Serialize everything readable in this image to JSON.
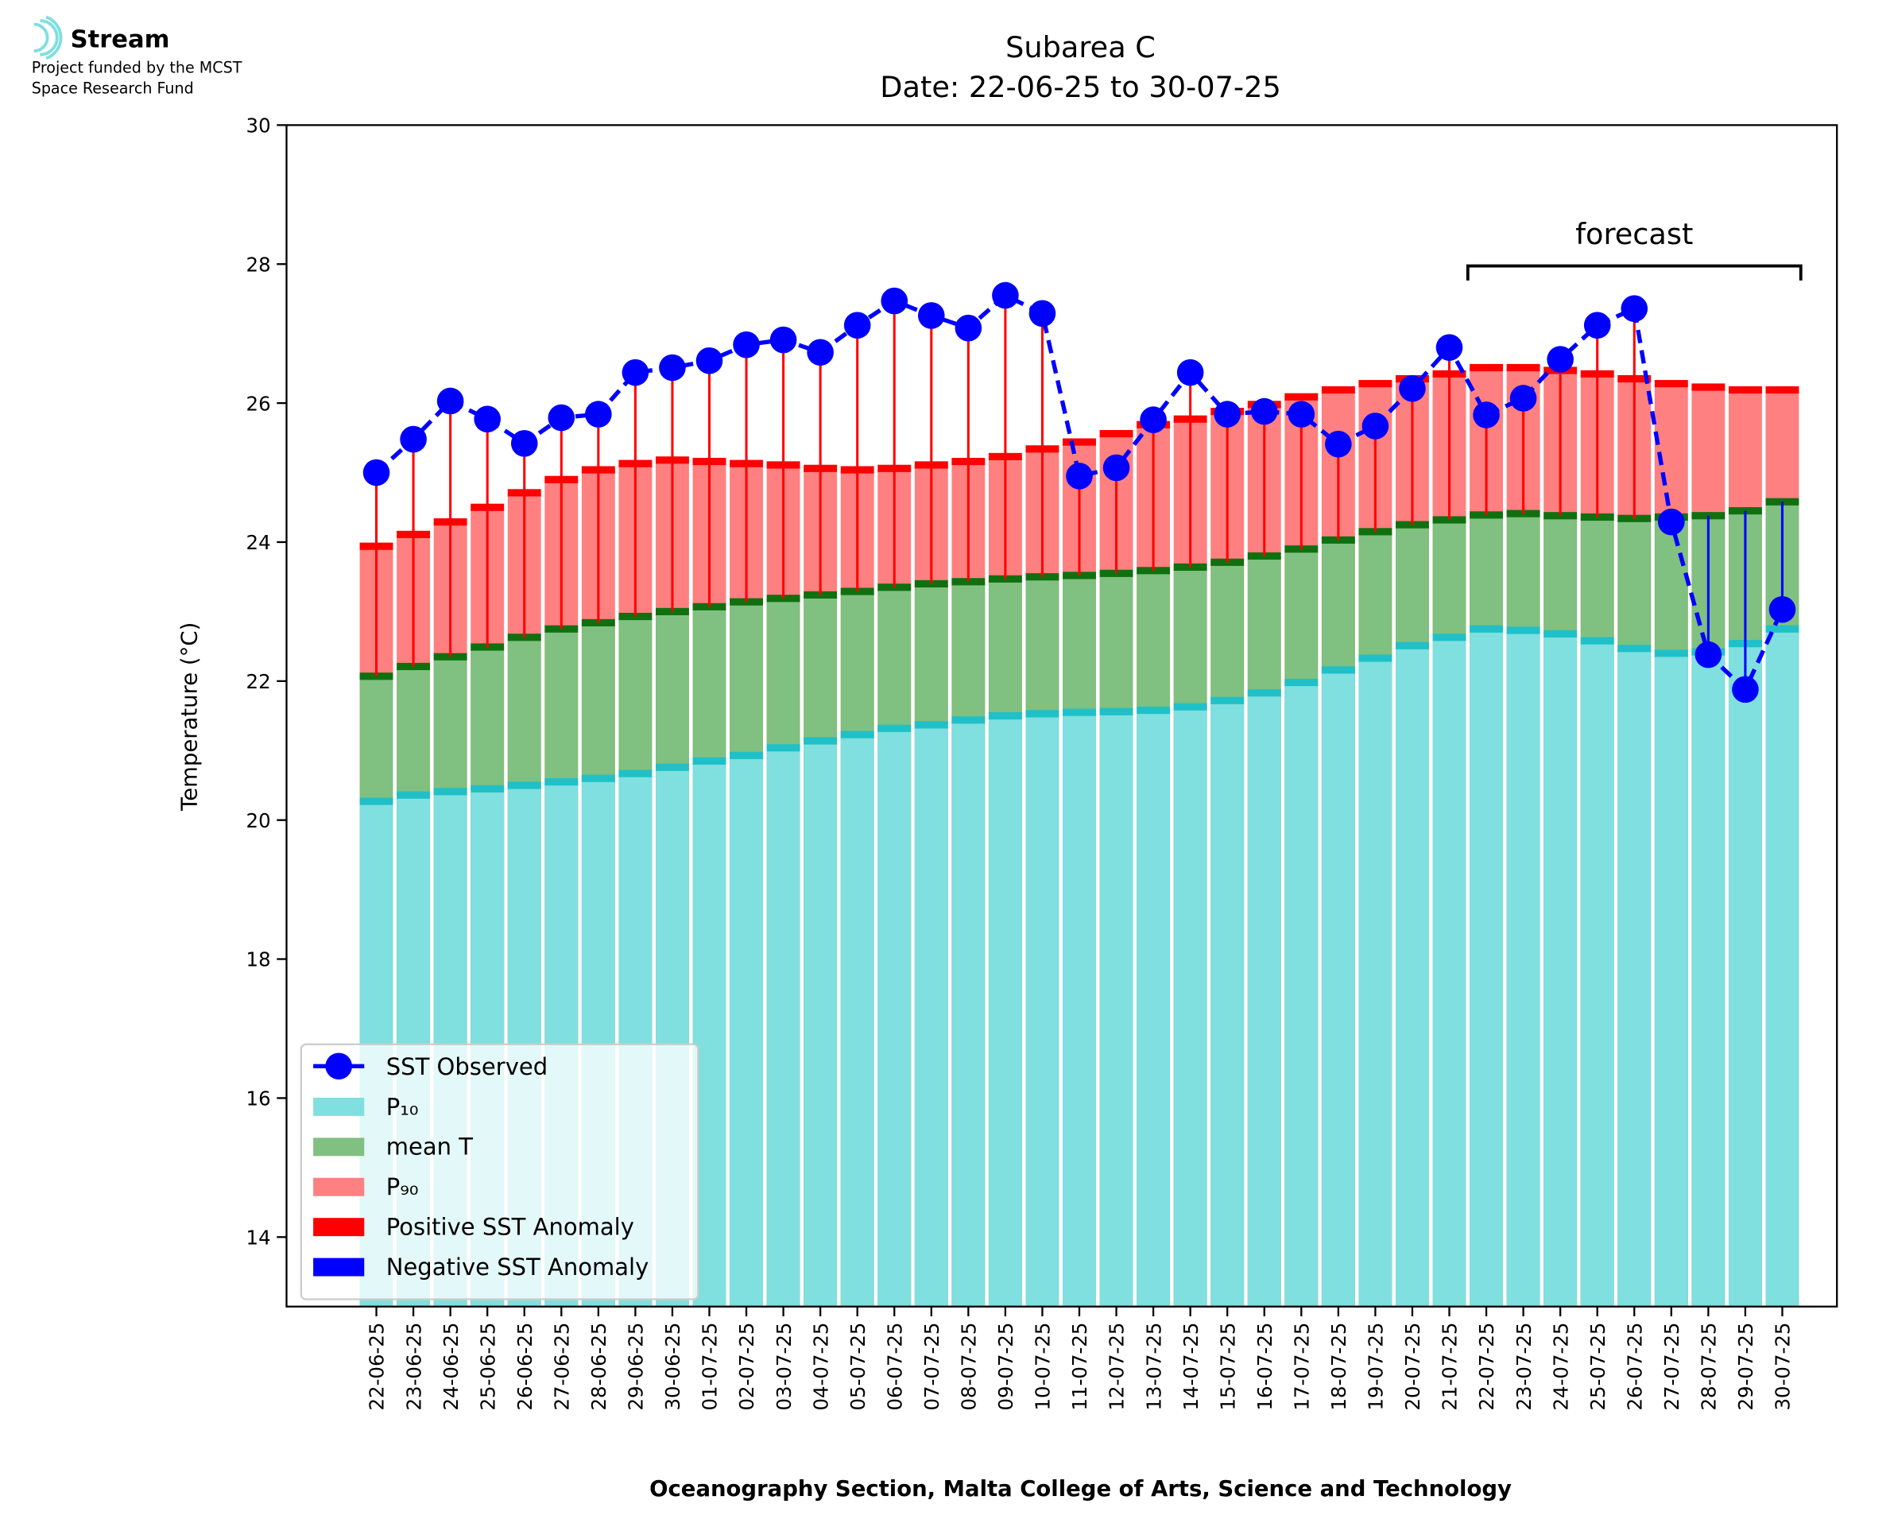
{
  "logo": {
    "name": "Stream",
    "lines": [
      "Project funded by the MCST",
      "Space Research Fund"
    ]
  },
  "chart_data": {
    "type": "bar",
    "title": "Subarea C",
    "subtitle": "Date: 22-06-25 to 30-07-25",
    "x_label": "Oceanography Section, Malta College of Arts, Science and Technology",
    "y_label": "Temperature (°C)",
    "categories": [
      "22-06-25",
      "23-06-25",
      "24-06-25",
      "25-06-25",
      "26-06-25",
      "27-06-25",
      "28-06-25",
      "29-06-25",
      "30-06-25",
      "01-07-25",
      "02-07-25",
      "03-07-25",
      "04-07-25",
      "05-07-25",
      "06-07-25",
      "07-07-25",
      "08-07-25",
      "09-07-25",
      "10-07-25",
      "11-07-25",
      "12-07-25",
      "13-07-25",
      "14-07-25",
      "15-07-25",
      "16-07-25",
      "17-07-25",
      "18-07-25",
      "19-07-25",
      "20-07-25",
      "21-07-25",
      "22-07-25",
      "23-07-25",
      "24-07-25",
      "25-07-25",
      "26-07-25",
      "27-07-25",
      "28-07-25",
      "29-07-25",
      "30-07-25"
    ],
    "series": [
      {
        "name": "SST Observed",
        "type": "line",
        "color": "#0000ff",
        "values": [
          25.0,
          25.48,
          26.03,
          25.77,
          25.42,
          25.79,
          25.84,
          26.44,
          26.51,
          26.61,
          26.84,
          26.91,
          26.73,
          27.12,
          27.47,
          27.26,
          27.08,
          27.55,
          27.29,
          24.95,
          25.07,
          25.76,
          26.44,
          25.84,
          25.88,
          25.84,
          25.41,
          25.67,
          26.21,
          26.8,
          25.83,
          26.07,
          26.63,
          27.12,
          27.36,
          24.29,
          22.38,
          21.88,
          23.03
        ]
      },
      {
        "name": "P₁₀",
        "type": "bar",
        "color": "#80dfdf",
        "cap_color": "#20c0c8",
        "values": [
          20.27,
          20.36,
          20.41,
          20.45,
          20.5,
          20.55,
          20.6,
          20.67,
          20.76,
          20.85,
          20.93,
          21.04,
          21.14,
          21.23,
          21.32,
          21.37,
          21.44,
          21.5,
          21.53,
          21.55,
          21.56,
          21.58,
          21.63,
          21.72,
          21.83,
          21.98,
          22.16,
          22.33,
          22.51,
          22.63,
          22.75,
          22.73,
          22.68,
          22.58,
          22.47,
          22.4,
          22.42,
          22.54,
          22.75
        ]
      },
      {
        "name": "mean T",
        "type": "bar",
        "color": "#80c080",
        "cap_color": "#107010",
        "values": [
          22.07,
          22.21,
          22.35,
          22.49,
          22.63,
          22.75,
          22.84,
          22.93,
          23.0,
          23.07,
          23.14,
          23.19,
          23.24,
          23.29,
          23.35,
          23.4,
          23.43,
          23.47,
          23.5,
          23.52,
          23.55,
          23.59,
          23.64,
          23.71,
          23.8,
          23.9,
          24.03,
          24.15,
          24.25,
          24.32,
          24.39,
          24.41,
          24.38,
          24.36,
          24.34,
          24.36,
          24.38,
          24.45,
          24.58
        ]
      },
      {
        "name": "P₉₀",
        "type": "bar",
        "color": "#ff8080",
        "cap_color": "#ff0000",
        "values": [
          23.94,
          24.11,
          24.29,
          24.5,
          24.71,
          24.9,
          25.04,
          25.13,
          25.18,
          25.16,
          25.13,
          25.11,
          25.06,
          25.04,
          25.06,
          25.11,
          25.16,
          25.23,
          25.34,
          25.44,
          25.56,
          25.69,
          25.77,
          25.88,
          25.98,
          26.09,
          26.19,
          26.28,
          26.35,
          26.42,
          26.51,
          26.51,
          26.47,
          26.42,
          26.35,
          26.28,
          26.23,
          26.19,
          26.19
        ]
      }
    ],
    "anomaly_legend": [
      {
        "name": "Positive SST Anomaly",
        "color": "#ff0000"
      },
      {
        "name": "Negative SST Anomaly",
        "color": "#0000ff"
      }
    ],
    "annotations": [
      {
        "text": "forecast",
        "start": "22-07-25",
        "end": "30-07-25"
      }
    ],
    "ylim": [
      13,
      30
    ],
    "yticks": [
      14,
      16,
      18,
      20,
      22,
      24,
      26,
      28,
      30
    ],
    "legend": "lower left"
  }
}
